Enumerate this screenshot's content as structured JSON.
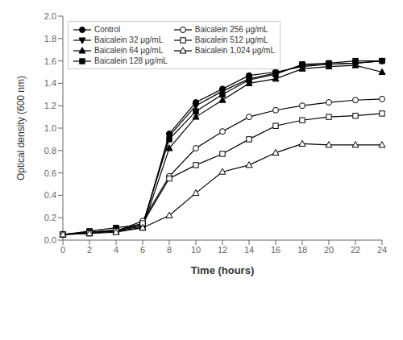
{
  "chart_data": {
    "type": "line",
    "x_label": "Time (hours)",
    "y_label": "Optical density (600 nm)",
    "x": [
      0,
      2,
      4,
      6,
      8,
      10,
      12,
      14,
      16,
      18,
      20,
      22,
      24
    ],
    "series": [
      {
        "name": "Control",
        "marker": "circle",
        "values": [
          0.05,
          0.07,
          0.09,
          0.12,
          0.95,
          1.23,
          1.35,
          1.47,
          1.5,
          1.55,
          1.57,
          1.58,
          1.6
        ]
      },
      {
        "name": "Baicalein 32 μg/mL",
        "marker": "triangle-down",
        "values": [
          0.05,
          0.07,
          0.09,
          0.13,
          0.93,
          1.2,
          1.33,
          1.44,
          1.49,
          1.56,
          1.57,
          1.58,
          1.6
        ]
      },
      {
        "name": "Baicalein 64 μg/mL",
        "marker": "triangle-up",
        "values": [
          0.05,
          0.07,
          0.08,
          0.11,
          0.82,
          1.1,
          1.25,
          1.4,
          1.44,
          1.53,
          1.55,
          1.56,
          1.5
        ]
      },
      {
        "name": "Baicalein 128 μg/mL",
        "marker": "square",
        "values": [
          0.05,
          0.08,
          0.11,
          0.14,
          0.9,
          1.15,
          1.3,
          1.43,
          1.48,
          1.57,
          1.58,
          1.6,
          1.6
        ]
      },
      {
        "name": "Baicalein 256 μg/mL",
        "marker": "circle-open",
        "values": [
          0.05,
          0.07,
          0.08,
          0.17,
          0.57,
          0.82,
          0.97,
          1.1,
          1.16,
          1.2,
          1.23,
          1.25,
          1.26
        ]
      },
      {
        "name": "Baicalein 512 μg/mL",
        "marker": "square-open",
        "values": [
          0.05,
          0.06,
          0.08,
          0.15,
          0.55,
          0.67,
          0.77,
          0.9,
          1.02,
          1.07,
          1.1,
          1.11,
          1.13
        ]
      },
      {
        "name": "Baicalein 1,024 μg/mL",
        "marker": "triangle-up-open",
        "values": [
          0.05,
          0.06,
          0.07,
          0.11,
          0.22,
          0.42,
          0.61,
          0.67,
          0.78,
          0.86,
          0.85,
          0.85,
          0.85
        ]
      }
    ],
    "color": "black",
    "xlim": [
      0,
      24
    ],
    "ylim": [
      0,
      2.0
    ],
    "xticks": [
      0,
      2,
      4,
      6,
      8,
      10,
      12,
      14,
      16,
      18,
      20,
      22,
      24
    ],
    "yticks": [
      {
        "value": 0,
        "label": "0.0"
      },
      0.2,
      0.4,
      0.6,
      0.8,
      {
        "value": 1.0,
        "label": "1.0"
      },
      1.2,
      1.4,
      1.6,
      1.8,
      {
        "value": 2.0,
        "label": "2.0"
      }
    ],
    "legend": "upper left",
    "grid": false
  }
}
